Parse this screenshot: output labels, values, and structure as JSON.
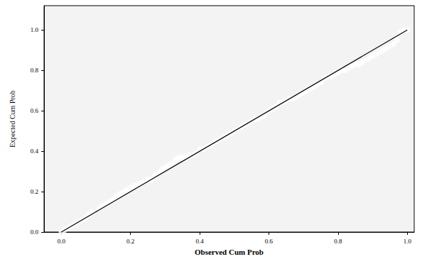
{
  "chart_data": {
    "type": "scatter",
    "x_label": "Observed Cum Prob",
    "y_label": "Expected Cum Prob",
    "xlim": [
      -0.05,
      1.02
    ],
    "ylim": [
      0,
      1.12
    ],
    "xticks": [
      {
        "value": 0,
        "label": "0.0"
      },
      {
        "value": 0.2,
        "label": "0.2"
      },
      {
        "value": 0.4,
        "label": "0.4"
      },
      {
        "value": 0.6,
        "label": "0.6"
      },
      {
        "value": 0.8,
        "label": "0.8"
      },
      {
        "value": 1,
        "label": "1.0"
      }
    ],
    "yticks": [
      {
        "value": 0,
        "label": "0.0"
      },
      {
        "value": 0.2,
        "label": "0.2"
      },
      {
        "value": 0.4,
        "label": "0.4"
      },
      {
        "value": 0.6,
        "label": "0.6"
      },
      {
        "value": 0.8,
        "label": "0.8"
      },
      {
        "value": 1,
        "label": "1.0"
      }
    ],
    "grid": false,
    "series": [
      {
        "type": "scatter",
        "marker": "circle",
        "color": "#000000",
        "x": [
          0.0,
          0.01,
          0.02,
          0.03,
          0.04,
          0.05,
          0.06,
          0.07,
          0.08,
          0.09,
          0.11,
          0.12,
          0.13,
          0.14,
          0.15,
          0.16,
          0.17,
          0.18,
          0.19,
          0.2,
          0.21,
          0.22,
          0.23,
          0.24,
          0.25,
          0.26,
          0.27,
          0.28,
          0.29,
          0.3,
          0.31,
          0.32,
          0.33,
          0.34,
          0.35,
          0.36,
          0.37,
          0.38,
          0.39,
          0.4,
          0.41,
          0.42,
          0.43,
          0.44,
          0.45,
          0.46,
          0.47,
          0.48,
          0.49,
          0.5,
          0.51,
          0.52,
          0.53,
          0.54,
          0.55,
          0.56,
          0.57,
          0.58,
          0.59,
          0.6,
          0.61,
          0.62,
          0.63,
          0.64,
          0.65,
          0.66,
          0.67,
          0.68,
          0.69,
          0.7,
          0.71,
          0.72,
          0.73,
          0.74,
          0.75,
          0.76,
          0.77,
          0.78,
          0.79,
          0.8,
          0.81,
          0.82,
          0.83,
          0.84,
          0.85,
          0.86,
          0.87,
          0.88,
          0.89,
          0.9,
          0.91,
          0.92,
          0.93,
          0.94,
          0.95,
          0.96,
          0.97,
          0.98,
          0.99,
          1.0
        ],
        "values": [
          0.0,
          0.01,
          0.02,
          0.03,
          0.04,
          0.05,
          0.06,
          0.07,
          0.09,
          0.1,
          0.12,
          0.13,
          0.14,
          0.15,
          0.16,
          0.18,
          0.19,
          0.2,
          0.21,
          0.22,
          0.23,
          0.23,
          0.24,
          0.25,
          0.26,
          0.26,
          0.28,
          0.29,
          0.31,
          0.32,
          0.33,
          0.34,
          0.36,
          0.37,
          0.37,
          0.37,
          0.38,
          0.38,
          0.39,
          0.41,
          0.41,
          0.42,
          0.43,
          0.44,
          0.45,
          0.46,
          0.47,
          0.48,
          0.49,
          0.5,
          0.51,
          0.52,
          0.53,
          0.54,
          0.55,
          0.56,
          0.56,
          0.57,
          0.58,
          0.6,
          0.61,
          0.62,
          0.64,
          0.64,
          0.65,
          0.66,
          0.66,
          0.67,
          0.68,
          0.69,
          0.7,
          0.71,
          0.72,
          0.73,
          0.74,
          0.76,
          0.77,
          0.77,
          0.78,
          0.79,
          0.8,
          0.8,
          0.81,
          0.82,
          0.83,
          0.83,
          0.84,
          0.85,
          0.86,
          0.87,
          0.88,
          0.89,
          0.9,
          0.91,
          0.92,
          0.93,
          0.95,
          0.99,
          1.0,
          1.0
        ]
      },
      {
        "type": "line",
        "line_style": "solid",
        "color": "#000000",
        "x": [
          0,
          1
        ],
        "values": [
          0,
          1
        ]
      }
    ]
  }
}
